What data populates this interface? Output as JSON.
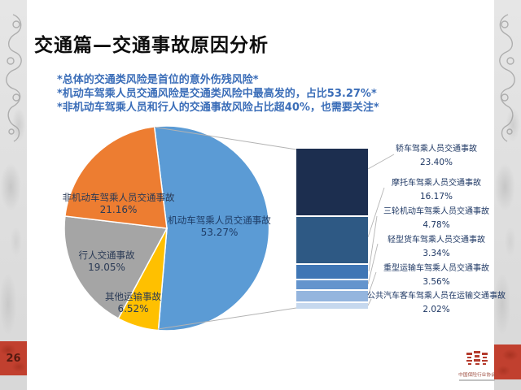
{
  "slide": {
    "title": "交通篇—交通事故原因分析",
    "bullets": [
      "*总体的交通类风险是首位的意外伤残风险*",
      "*机动车驾乘人员交通风险是交通类风险中最高发的，占比53.27%*",
      "*非机动车驾乘人员和行人的交通事故风险占比超40%，也需要关注*"
    ],
    "bullet_color": "#3a6db8",
    "page_number": "26",
    "logo": {
      "org_name": "中国保险行业协会",
      "accent_color": "#b43b2d"
    }
  },
  "chart_data": {
    "type": "pie",
    "title": "",
    "legend": "off",
    "pie": {
      "start_angle_deg": -7,
      "direction": "clockwise",
      "slices": [
        {
          "label": "机动车驾乘人员交通事故",
          "pct_label": "53.27%",
          "value": 53.27,
          "color": "#5b9bd5"
        },
        {
          "label": "其他运输事故",
          "pct_label": "6.52%",
          "value": 6.52,
          "color": "#ffc000"
        },
        {
          "label": "行人交通事故",
          "pct_label": "19.05%",
          "value": 19.05,
          "color": "#a5a5a5"
        },
        {
          "label": "非机动车驾乘人员交通事故",
          "pct_label": "21.16%",
          "value": 21.16,
          "color": "#ed7d31"
        }
      ]
    },
    "breakdown_bar": {
      "parent_slice": "机动车驾乘人员交通事故",
      "segments": [
        {
          "label": "轿车驾乘人员交通事故",
          "pct_label": "23.40%",
          "value": 23.4,
          "color": "#1c2e4f"
        },
        {
          "label": "摩托车驾乘人员交通事故",
          "pct_label": "16.17%",
          "value": 16.17,
          "color": "#2e5984"
        },
        {
          "label": "三轮机动车驾乘人员交通事故",
          "pct_label": "4.78%",
          "value": 4.78,
          "color": "#3f76b5"
        },
        {
          "label": "轻型货车驾乘人员交通事故",
          "pct_label": "3.34%",
          "value": 3.34,
          "color": "#6394cd"
        },
        {
          "label": "重型运输车驾乘人员交通事故",
          "pct_label": "3.56%",
          "value": 3.56,
          "color": "#94b5de"
        },
        {
          "label": "公共汽车客车驾乘人员在运输交通事故",
          "pct_label": "2.02%",
          "value": 2.02,
          "color": "#c6d8ee"
        }
      ]
    }
  }
}
